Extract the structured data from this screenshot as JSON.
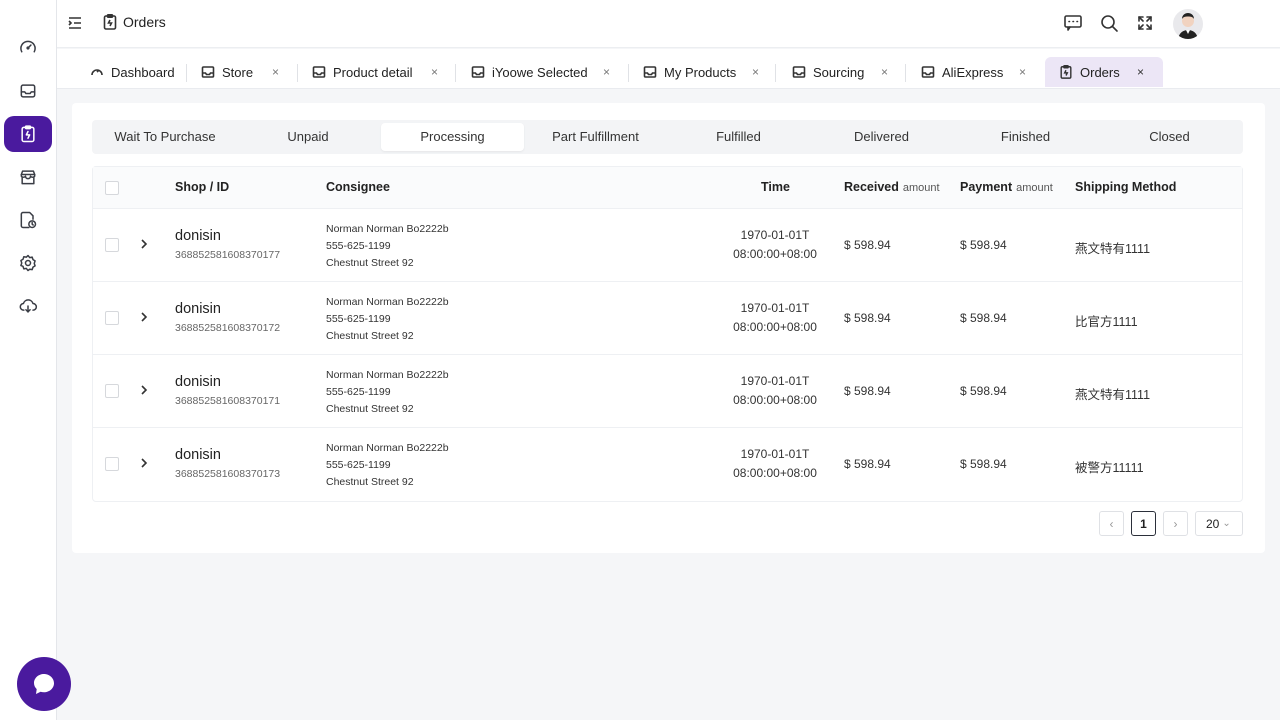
{
  "header": {
    "title": "Orders"
  },
  "sidebar": {
    "items": [
      {
        "name": "dashboard",
        "icon": "gauge-icon"
      },
      {
        "name": "store",
        "icon": "inbox-icon"
      },
      {
        "name": "orders",
        "icon": "clipboard-icon",
        "active": true
      },
      {
        "name": "shop",
        "icon": "storefront-icon"
      },
      {
        "name": "files",
        "icon": "file-clock-icon"
      },
      {
        "name": "settings",
        "icon": "gear-icon"
      },
      {
        "name": "cloud",
        "icon": "cloud-sync-icon"
      }
    ]
  },
  "tabs": [
    {
      "label": "Dashboard",
      "close": ""
    },
    {
      "label": "Store",
      "close": "×"
    },
    {
      "label": "Product detail",
      "close": "×"
    },
    {
      "label": "iYoowe Selected",
      "close": "×"
    },
    {
      "label": "My Products",
      "close": "×"
    },
    {
      "label": "Sourcing",
      "close": "×"
    },
    {
      "label": "AliExpress",
      "close": "×"
    },
    {
      "label": "Orders",
      "close": "×"
    }
  ],
  "status_tabs": [
    "Wait To Purchase",
    "Unpaid",
    "Processing",
    "Part Fulfillment",
    "Fulfilled",
    "Delivered",
    "Finished",
    "Closed"
  ],
  "table": {
    "columns": {
      "shop": "Shop / ID",
      "consignee": "Consignee",
      "time": "Time",
      "received": "Received",
      "received_sub": "amount",
      "payment": "Payment",
      "payment_sub": "amount",
      "shipping": "Shipping Method"
    },
    "rows": [
      {
        "shop": "donisin",
        "id": "368852581608370177",
        "name": "Norman Norman Bo2222b",
        "phone": "555-625-1199",
        "street": "Chestnut Street 92",
        "date": "1970-01-01T",
        "clock": "08:00:00+08:00",
        "received": "$ 598.94",
        "payment": "$ 598.94",
        "shipping": "燕文特有1111"
      },
      {
        "shop": "donisin",
        "id": "368852581608370172",
        "name": "Norman Norman Bo2222b",
        "phone": "555-625-1199",
        "street": "Chestnut Street 92",
        "date": "1970-01-01T",
        "clock": "08:00:00+08:00",
        "received": "$ 598.94",
        "payment": "$ 598.94",
        "shipping": "比官方1111"
      },
      {
        "shop": "donisin",
        "id": "368852581608370171",
        "name": "Norman Norman Bo2222b",
        "phone": "555-625-1199",
        "street": "Chestnut Street 92",
        "date": "1970-01-01T",
        "clock": "08:00:00+08:00",
        "received": "$ 598.94",
        "payment": "$ 598.94",
        "shipping": "燕文特有1111"
      },
      {
        "shop": "donisin",
        "id": "368852581608370173",
        "name": "Norman Norman Bo2222b",
        "phone": "555-625-1199",
        "street": "Chestnut Street 92",
        "date": "1970-01-01T",
        "clock": "08:00:00+08:00",
        "received": "$ 598.94",
        "payment": "$ 598.94",
        "shipping": "被警方11111"
      }
    ]
  },
  "pagination": {
    "prev": "‹",
    "current_page": "1",
    "next": "›",
    "page_size": "20"
  },
  "colors": {
    "accent": "#4a1a9e",
    "active_tab_bg": "#ece6f6"
  }
}
